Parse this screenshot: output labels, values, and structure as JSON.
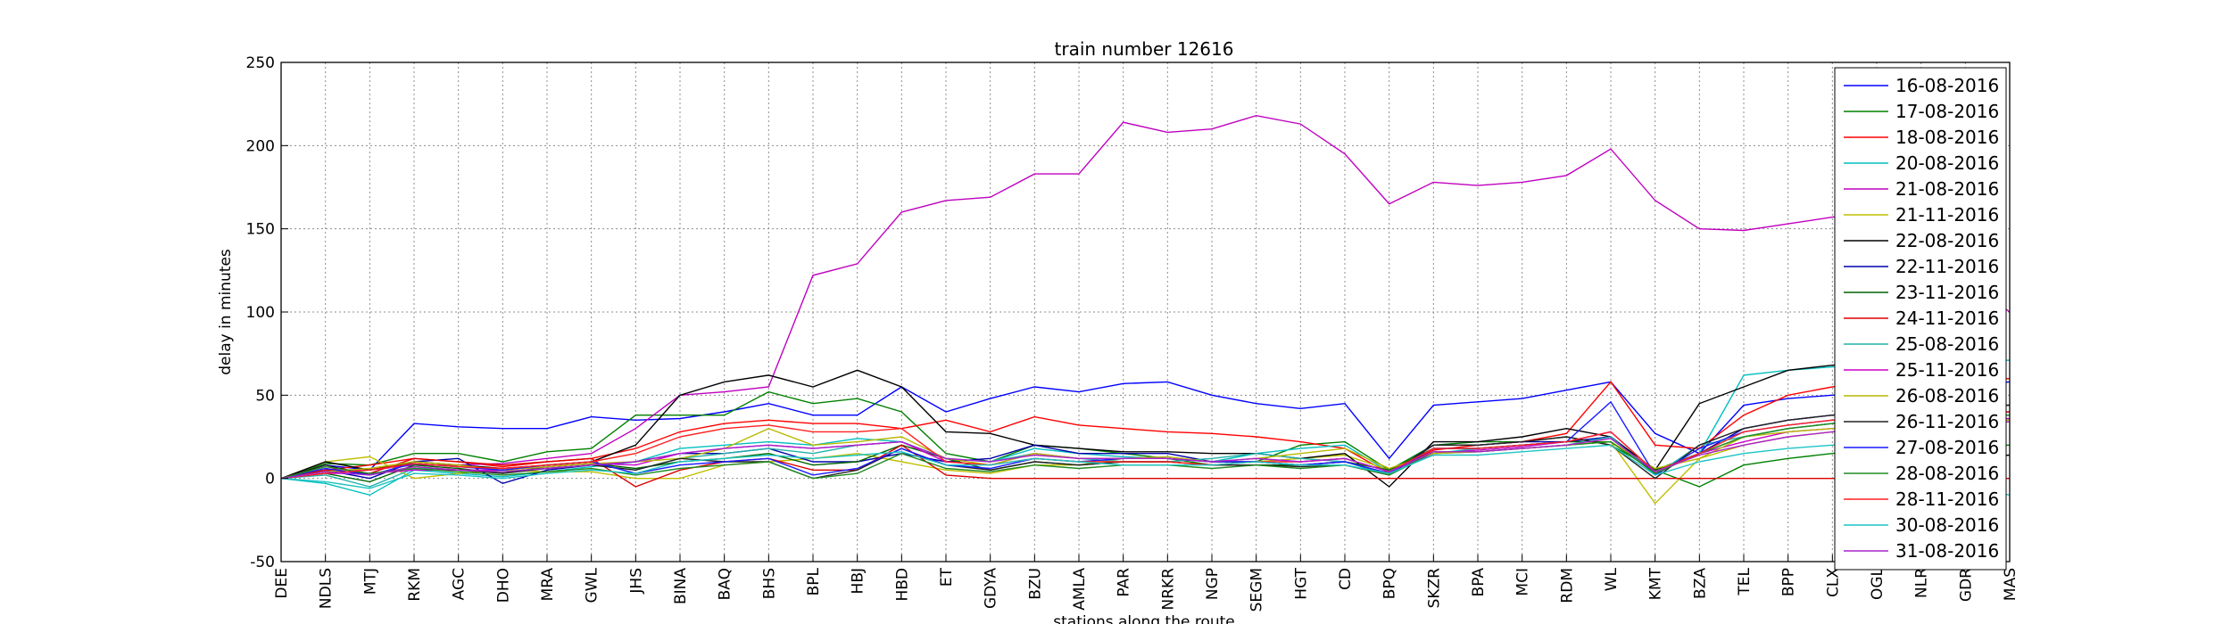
{
  "chart_data": {
    "type": "line",
    "title": "train number 12616",
    "xlabel": "stations along the route",
    "ylabel": "delay in minutes",
    "ylim": [
      -50,
      250
    ],
    "yticks": [
      -50,
      0,
      50,
      100,
      150,
      200,
      250
    ],
    "grid": true,
    "legend_position": "right",
    "categories": [
      "DEE",
      "NDLS",
      "MTJ",
      "RKM",
      "AGC",
      "DHO",
      "MRA",
      "GWL",
      "JHS",
      "BINA",
      "BAQ",
      "BHS",
      "BPL",
      "HBJ",
      "HBD",
      "ET",
      "GDYA",
      "BZU",
      "AMLA",
      "PAR",
      "NRKR",
      "NGP",
      "SEGM",
      "HGT",
      "CD",
      "BPQ",
      "SKZR",
      "BPA",
      "MCI",
      "RDM",
      "WL",
      "KMT",
      "BZA",
      "TEL",
      "BPP",
      "CLX",
      "OGL",
      "NLR",
      "GDR",
      "MAS"
    ],
    "series": [
      {
        "name": "16-08-2016",
        "color": "#0000ff",
        "values": [
          0,
          8,
          5,
          33,
          31,
          30,
          30,
          37,
          35,
          36,
          40,
          45,
          38,
          38,
          55,
          40,
          48,
          55,
          52,
          57,
          58,
          50,
          45,
          42,
          45,
          12,
          44,
          46,
          48,
          53,
          58,
          27,
          15,
          44,
          48,
          50,
          52,
          54,
          56,
          58
        ]
      },
      {
        "name": "17-08-2016",
        "color": "#008000",
        "values": [
          0,
          9,
          8,
          15,
          15,
          10,
          16,
          18,
          38,
          38,
          38,
          52,
          45,
          48,
          40,
          15,
          10,
          20,
          18,
          15,
          12,
          8,
          10,
          20,
          22,
          5,
          20,
          22,
          22,
          25,
          20,
          5,
          -5,
          8,
          12,
          15,
          17,
          18,
          19,
          20
        ]
      },
      {
        "name": "18-08-2016",
        "color": "#ff0000",
        "values": [
          0,
          5,
          8,
          12,
          10,
          7,
          10,
          12,
          18,
          28,
          33,
          35,
          33,
          33,
          30,
          35,
          28,
          37,
          32,
          30,
          28,
          27,
          25,
          22,
          18,
          3,
          17,
          20,
          22,
          27,
          58,
          20,
          18,
          38,
          50,
          55,
          57,
          58,
          59,
          60
        ]
      },
      {
        "name": "20-08-2016",
        "color": "#00bfbf",
        "values": [
          0,
          -3,
          -10,
          5,
          3,
          1,
          4,
          7,
          10,
          18,
          20,
          22,
          20,
          24,
          22,
          12,
          10,
          18,
          15,
          13,
          12,
          10,
          15,
          18,
          20,
          4,
          15,
          18,
          20,
          22,
          25,
          5,
          15,
          62,
          65,
          67,
          68,
          69,
          70,
          71
        ]
      },
      {
        "name": "21-08-2016",
        "color": "#bf00bf",
        "values": [
          0,
          5,
          5,
          8,
          8,
          9,
          12,
          15,
          30,
          50,
          52,
          55,
          122,
          129,
          160,
          167,
          169,
          183,
          183,
          214,
          208,
          210,
          218,
          213,
          195,
          165,
          178,
          176,
          178,
          182,
          198,
          167,
          150,
          149,
          153,
          157,
          160,
          140,
          120,
          100
        ]
      },
      {
        "name": "21-11-2016",
        "color": "#bfbf00",
        "values": [
          0,
          10,
          13,
          0,
          3,
          5,
          4,
          4,
          0,
          0,
          8,
          10,
          12,
          15,
          10,
          5,
          3,
          8,
          8,
          12,
          12,
          10,
          10,
          12,
          14,
          5,
          15,
          16,
          18,
          20,
          22,
          -15,
          12,
          20,
          25,
          28,
          30,
          32,
          33,
          35
        ]
      },
      {
        "name": "22-08-2016",
        "color": "#000000",
        "values": [
          0,
          10,
          5,
          10,
          8,
          6,
          8,
          10,
          20,
          50,
          58,
          62,
          55,
          65,
          55,
          28,
          27,
          20,
          18,
          16,
          16,
          15,
          15,
          12,
          15,
          -5,
          22,
          22,
          25,
          30,
          25,
          5,
          45,
          55,
          65,
          68,
          70,
          10,
          12,
          14
        ]
      },
      {
        "name": "22-11-2016",
        "color": "#0000aa",
        "values": [
          0,
          5,
          0,
          10,
          12,
          -3,
          5,
          8,
          10,
          15,
          15,
          18,
          10,
          10,
          15,
          10,
          12,
          20,
          15,
          15,
          15,
          10,
          10,
          8,
          10,
          3,
          20,
          20,
          22,
          22,
          25,
          3,
          15,
          30,
          35,
          38,
          40,
          42,
          43,
          44
        ]
      },
      {
        "name": "23-11-2016",
        "color": "#006400",
        "values": [
          0,
          3,
          -2,
          8,
          6,
          3,
          7,
          9,
          6,
          10,
          12,
          15,
          8,
          10,
          20,
          12,
          5,
          10,
          8,
          10,
          10,
          8,
          8,
          8,
          10,
          5,
          18,
          18,
          20,
          22,
          22,
          5,
          15,
          25,
          30,
          33,
          35,
          36,
          37,
          38
        ]
      },
      {
        "name": "24-11-2016",
        "color": "#dd0000",
        "values": [
          0,
          5,
          3,
          12,
          10,
          8,
          10,
          12,
          -5,
          5,
          10,
          12,
          5,
          5,
          20,
          2,
          0,
          0,
          0,
          0,
          0,
          0,
          0,
          0,
          0,
          0,
          0,
          0,
          0,
          0,
          0,
          0,
          0,
          0,
          0,
          0,
          0,
          0,
          0,
          0
        ]
      },
      {
        "name": "25-08-2016",
        "color": "#20b2aa",
        "values": [
          0,
          2,
          -5,
          6,
          5,
          4,
          6,
          8,
          5,
          12,
          15,
          18,
          15,
          20,
          22,
          12,
          10,
          15,
          12,
          10,
          10,
          12,
          15,
          12,
          10,
          2,
          15,
          16,
          18,
          20,
          25,
          2,
          20,
          25,
          30,
          33,
          35,
          36,
          37,
          38
        ]
      },
      {
        "name": "25-11-2016",
        "color": "#cc00cc",
        "values": [
          0,
          3,
          3,
          5,
          5,
          5,
          7,
          9,
          8,
          15,
          18,
          20,
          18,
          20,
          22,
          10,
          8,
          15,
          12,
          12,
          12,
          10,
          12,
          10,
          12,
          4,
          15,
          17,
          19,
          22,
          28,
          4,
          15,
          22,
          28,
          30,
          32,
          34,
          35,
          36
        ]
      },
      {
        "name": "26-08-2016",
        "color": "#b8b800",
        "values": [
          0,
          4,
          6,
          10,
          8,
          5,
          7,
          9,
          10,
          12,
          18,
          30,
          20,
          22,
          25,
          12,
          8,
          15,
          12,
          12,
          13,
          10,
          12,
          15,
          18,
          6,
          15,
          16,
          18,
          20,
          22,
          6,
          12,
          25,
          28,
          30,
          32,
          33,
          34,
          35
        ]
      },
      {
        "name": "26-11-2016",
        "color": "#222222",
        "values": [
          0,
          8,
          2,
          7,
          5,
          3,
          6,
          8,
          5,
          12,
          10,
          10,
          0,
          5,
          18,
          8,
          5,
          10,
          8,
          10,
          10,
          8,
          8,
          7,
          8,
          2,
          20,
          20,
          22,
          25,
          20,
          0,
          20,
          30,
          35,
          38,
          40,
          42,
          43,
          44
        ]
      },
      {
        "name": "27-08-2016",
        "color": "#1a1aff",
        "values": [
          0,
          6,
          2,
          9,
          7,
          5,
          8,
          10,
          3,
          8,
          10,
          12,
          2,
          6,
          18,
          8,
          6,
          12,
          10,
          12,
          12,
          10,
          10,
          8,
          10,
          3,
          18,
          18,
          20,
          22,
          46,
          2,
          18,
          28,
          32,
          35,
          37,
          38,
          39,
          40
        ]
      },
      {
        "name": "28-08-2016",
        "color": "#228b22",
        "values": [
          0,
          7,
          3,
          6,
          4,
          2,
          4,
          6,
          2,
          6,
          8,
          10,
          0,
          3,
          15,
          6,
          4,
          8,
          6,
          8,
          8,
          6,
          8,
          6,
          8,
          2,
          16,
          16,
          18,
          20,
          22,
          3,
          15,
          25,
          30,
          33,
          35,
          36,
          37,
          38
        ]
      },
      {
        "name": "28-11-2016",
        "color": "#ff2020",
        "values": [
          0,
          3,
          5,
          9,
          7,
          6,
          8,
          10,
          15,
          25,
          30,
          32,
          28,
          28,
          30,
          10,
          8,
          12,
          10,
          10,
          10,
          8,
          10,
          10,
          12,
          4,
          18,
          18,
          20,
          22,
          28,
          4,
          15,
          28,
          32,
          35,
          37,
          38,
          39,
          40
        ]
      },
      {
        "name": "30-08-2016",
        "color": "#1cc4c4",
        "values": [
          0,
          -2,
          -6,
          3,
          2,
          0,
          3,
          5,
          3,
          10,
          12,
          14,
          12,
          14,
          16,
          8,
          8,
          12,
          10,
          8,
          8,
          8,
          10,
          8,
          8,
          3,
          14,
          14,
          16,
          18,
          20,
          2,
          10,
          15,
          18,
          20,
          22,
          0,
          -5,
          -10
        ]
      },
      {
        "name": "31-08-2016",
        "color": "#aa22cc",
        "values": [
          0,
          4,
          2,
          7,
          5,
          4,
          6,
          8,
          10,
          15,
          18,
          20,
          18,
          20,
          22,
          12,
          10,
          14,
          12,
          12,
          12,
          10,
          12,
          10,
          12,
          4,
          16,
          16,
          18,
          20,
          24,
          4,
          14,
          20,
          25,
          28,
          30,
          32,
          33,
          34
        ]
      }
    ]
  }
}
